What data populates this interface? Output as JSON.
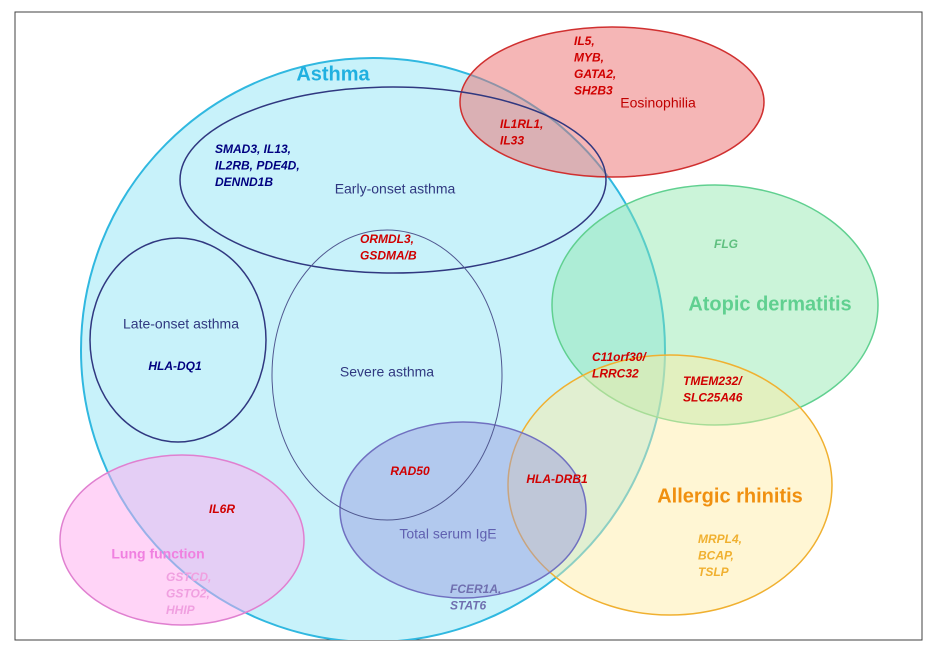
{
  "sets": [
    {
      "name": "Asthma"
    },
    {
      "name": "Eosinophilia"
    },
    {
      "name": "Early-onset asthma"
    },
    {
      "name": "Late-onset asthma"
    },
    {
      "name": "Severe asthma"
    },
    {
      "name": "Atopic dermatitis"
    },
    {
      "name": "Allergic rhinitis"
    },
    {
      "name": "Lung function"
    },
    {
      "name": "Total serum IgE"
    }
  ],
  "genes": [
    {
      "lines": [
        "IL5,",
        "MYB,",
        "GATA2,",
        "SH2B3"
      ]
    },
    {
      "lines": [
        "IL1RL1,",
        "IL33"
      ]
    },
    {
      "lines": [
        "SMAD3, IL13,",
        "IL2RB, PDE4D,",
        "DENND1B"
      ]
    },
    {
      "lines": [
        "ORMDL3,",
        "GSDMA/B"
      ]
    },
    {
      "lines": [
        "HLA-DQ1"
      ]
    },
    {
      "lines": [
        "FLG"
      ]
    },
    {
      "lines": [
        "C11orf30/",
        "LRRC32"
      ]
    },
    {
      "lines": [
        "TMEM232/",
        "SLC25A46"
      ]
    },
    {
      "lines": [
        "HLA-DRB1"
      ]
    },
    {
      "lines": [
        "RAD50"
      ]
    },
    {
      "lines": [
        "IL6R"
      ]
    },
    {
      "lines": [
        "MRPL4,",
        "BCAP,",
        "TSLP"
      ]
    },
    {
      "lines": [
        "GSTCD,",
        "GSTO2,",
        "HHIP"
      ]
    },
    {
      "lines": [
        "FCER1A,",
        "STAT6"
      ]
    }
  ]
}
